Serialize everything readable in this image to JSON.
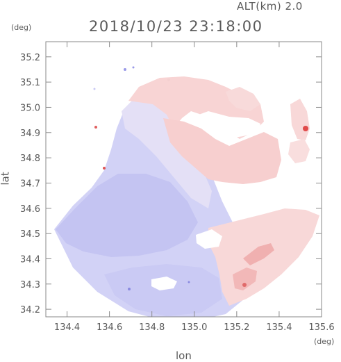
{
  "header": {
    "altitude": "ALT(km) 2.0",
    "datetime": "2018/10/23 23:18:00"
  },
  "axes": {
    "y_unit": "(deg)",
    "x_unit": "(deg)",
    "x_label": "lon",
    "y_label": "lat",
    "x_ticks": [
      "134.4",
      "134.6",
      "134.8",
      "135.0",
      "135.2",
      "135.4",
      "135.6"
    ],
    "y_ticks": [
      "35.2",
      "35.1",
      "35.0",
      "34.9",
      "34.8",
      "34.7",
      "34.6",
      "34.5",
      "34.4",
      "34.3",
      "34.2"
    ],
    "x_range": [
      134.3,
      135.6
    ],
    "y_range": [
      34.17,
      35.26
    ]
  },
  "map": {
    "type": "radar-doppler-velocity",
    "colors": {
      "approaching_light": "#dcdcf8",
      "approaching": "#c8c8f4",
      "receding_light": "#fbe2e2",
      "receding": "#f6c6c6",
      "receding_strong": "#e04a4a",
      "frame": "#888888"
    }
  }
}
